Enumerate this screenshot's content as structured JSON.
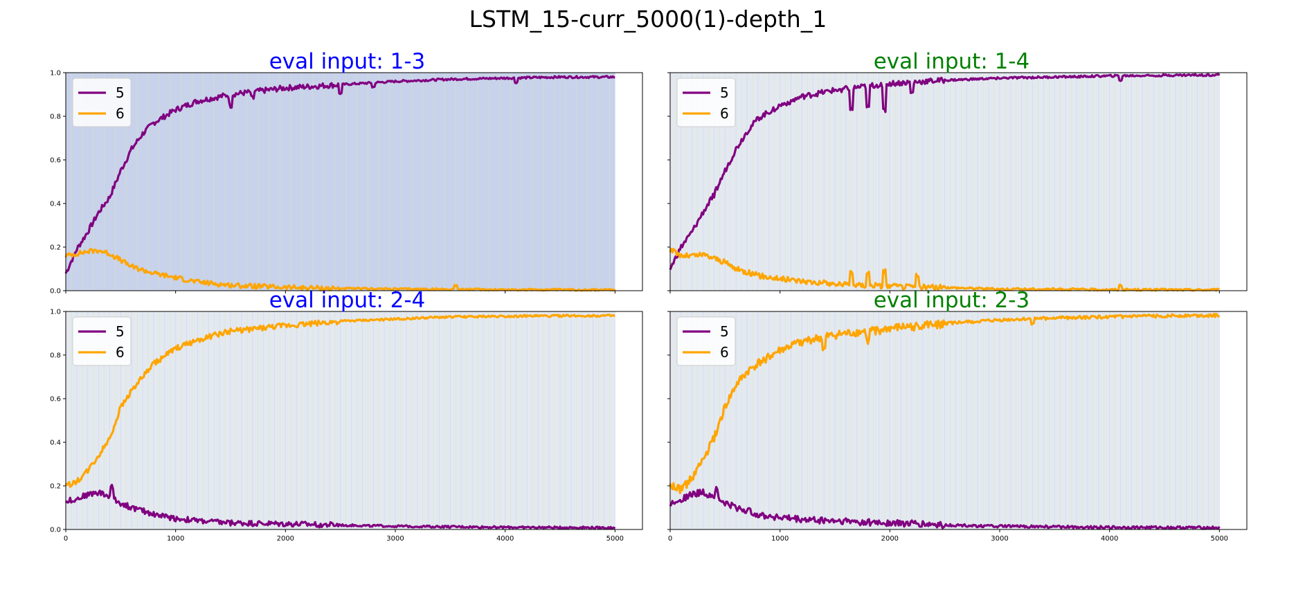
{
  "figure": {
    "title": "LSTM_15-curr_5000(1)-depth_1"
  },
  "chart_data": [
    {
      "type": "line",
      "title": "eval input: 1-3",
      "title_color": "#0000ff",
      "band_color": "#c8d2ea",
      "xlim": [
        0,
        5250
      ],
      "ylim": [
        0,
        1
      ],
      "x_ticks": [
        0,
        1000,
        2000,
        3000,
        4000,
        5000
      ],
      "y_ticks": [
        0.0,
        0.2,
        0.4,
        0.6,
        0.8,
        1.0
      ],
      "y_tick_labels": [
        "0.0",
        "0.2",
        "0.4",
        "0.6",
        "0.8",
        "1.0"
      ],
      "x_tick_labels_visible": false,
      "y_tick_labels_visible": true,
      "legend": {
        "position": "upper-left"
      },
      "series": [
        {
          "name": "5",
          "color": "#800080",
          "x": [
            0,
            100,
            200,
            300,
            400,
            500,
            600,
            700,
            800,
            1000,
            1200,
            1500,
            2000,
            2500,
            3000,
            3500,
            4000,
            4500,
            5000
          ],
          "values": [
            0.08,
            0.19,
            0.27,
            0.36,
            0.43,
            0.55,
            0.65,
            0.72,
            0.77,
            0.83,
            0.87,
            0.9,
            0.93,
            0.945,
            0.96,
            0.97,
            0.975,
            0.98,
            0.98
          ],
          "noise": 0.008,
          "dips": [
            [
              1500,
              0.05
            ],
            [
              1700,
              0.03
            ],
            [
              2500,
              0.04
            ],
            [
              2800,
              0.02
            ],
            [
              4100,
              0.02
            ]
          ]
        },
        {
          "name": "6",
          "color": "#ffa500",
          "x": [
            0,
            100,
            200,
            300,
            400,
            500,
            600,
            800,
            1000,
            1200,
            1500,
            2000,
            2500,
            3000,
            4000,
            5000
          ],
          "values": [
            0.16,
            0.17,
            0.18,
            0.185,
            0.17,
            0.14,
            0.11,
            0.08,
            0.06,
            0.04,
            0.025,
            0.015,
            0.01,
            0.008,
            0.005,
            0.004
          ],
          "noise": 0.007,
          "dips": [
            [
              3550,
              -0.02
            ]
          ]
        }
      ]
    },
    {
      "type": "line",
      "title": "eval input: 1-4",
      "title_color": "#008000",
      "band_color": "#e4e9f0",
      "xlim": [
        0,
        5250
      ],
      "ylim": [
        0,
        1
      ],
      "x_ticks": [
        0,
        1000,
        2000,
        3000,
        4000,
        5000
      ],
      "y_ticks": [
        0.0,
        0.2,
        0.4,
        0.6,
        0.8,
        1.0
      ],
      "y_tick_labels": [
        "0.0",
        "0.2",
        "0.4",
        "0.6",
        "0.8",
        "1.0"
      ],
      "x_tick_labels_visible": false,
      "y_tick_labels_visible": false,
      "legend": {
        "position": "upper-left"
      },
      "series": [
        {
          "name": "5",
          "color": "#800080",
          "x": [
            0,
            100,
            200,
            300,
            400,
            500,
            600,
            700,
            800,
            1000,
            1200,
            1500,
            2000,
            2500,
            3000,
            3500,
            4000,
            4500,
            5000
          ],
          "values": [
            0.1,
            0.2,
            0.27,
            0.36,
            0.44,
            0.55,
            0.65,
            0.73,
            0.79,
            0.85,
            0.89,
            0.92,
            0.95,
            0.965,
            0.975,
            0.98,
            0.985,
            0.988,
            0.99
          ],
          "noise": 0.008,
          "dips": [
            [
              1650,
              0.1
            ],
            [
              1800,
              0.1
            ],
            [
              1950,
              0.12
            ],
            [
              2200,
              0.05
            ],
            [
              4100,
              0.02
            ]
          ]
        },
        {
          "name": "6",
          "color": "#ffa500",
          "x": [
            0,
            100,
            200,
            300,
            400,
            500,
            600,
            800,
            1000,
            1200,
            1500,
            2000,
            2500,
            3000,
            4000,
            5000
          ],
          "values": [
            0.19,
            0.16,
            0.16,
            0.165,
            0.15,
            0.13,
            0.1,
            0.07,
            0.055,
            0.045,
            0.03,
            0.02,
            0.015,
            0.008,
            0.005,
            0.004
          ],
          "noise": 0.008,
          "dips": [
            [
              1650,
              -0.06
            ],
            [
              1800,
              -0.06
            ],
            [
              1950,
              -0.07
            ],
            [
              2250,
              -0.05
            ],
            [
              4100,
              -0.02
            ]
          ]
        }
      ]
    },
    {
      "type": "line",
      "title": "eval input: 2-4",
      "title_color": "#0000ff",
      "band_color": "#e4e9f0",
      "xlim": [
        0,
        5250
      ],
      "ylim": [
        0,
        1
      ],
      "x_ticks": [
        0,
        1000,
        2000,
        3000,
        4000,
        5000
      ],
      "x_tick_labels": [
        "0",
        "1000",
        "2000",
        "3000",
        "4000",
        "5000"
      ],
      "y_ticks": [
        0.0,
        0.2,
        0.4,
        0.6,
        0.8,
        1.0
      ],
      "y_tick_labels": [
        "0.0",
        "0.2",
        "0.4",
        "0.6",
        "0.8",
        "1.0"
      ],
      "x_tick_labels_visible": true,
      "y_tick_labels_visible": true,
      "legend": {
        "position": "upper-left"
      },
      "series": [
        {
          "name": "5",
          "color": "#800080",
          "x": [
            0,
            100,
            200,
            300,
            400,
            500,
            600,
            800,
            1000,
            1200,
            1500,
            2000,
            2500,
            3000,
            4000,
            5000
          ],
          "values": [
            0.13,
            0.14,
            0.16,
            0.17,
            0.15,
            0.12,
            0.1,
            0.07,
            0.05,
            0.04,
            0.03,
            0.025,
            0.02,
            0.015,
            0.01,
            0.008
          ],
          "noise": 0.008,
          "dips": [
            [
              420,
              -0.05
            ]
          ]
        },
        {
          "name": "6",
          "color": "#ffa500",
          "x": [
            0,
            100,
            200,
            300,
            400,
            500,
            600,
            700,
            800,
            1000,
            1200,
            1500,
            2000,
            2500,
            3000,
            3500,
            4000,
            4500,
            5000
          ],
          "values": [
            0.2,
            0.22,
            0.27,
            0.34,
            0.42,
            0.56,
            0.64,
            0.7,
            0.76,
            0.83,
            0.87,
            0.91,
            0.935,
            0.955,
            0.965,
            0.975,
            0.978,
            0.98,
            0.98
          ],
          "noise": 0.008,
          "dips": []
        }
      ]
    },
    {
      "type": "line",
      "title": "eval input: 2-3",
      "title_color": "#008000",
      "band_color": "#e4e9f0",
      "xlim": [
        0,
        5250
      ],
      "ylim": [
        0,
        1
      ],
      "x_ticks": [
        0,
        1000,
        2000,
        3000,
        4000,
        5000
      ],
      "x_tick_labels": [
        "0",
        "1000",
        "2000",
        "3000",
        "4000",
        "5000"
      ],
      "y_ticks": [
        0.0,
        0.2,
        0.4,
        0.6,
        0.8,
        1.0
      ],
      "y_tick_labels": [
        "0.0",
        "0.2",
        "0.4",
        "0.6",
        "0.8",
        "1.0"
      ],
      "x_tick_labels_visible": true,
      "y_tick_labels_visible": false,
      "legend": {
        "position": "upper-left"
      },
      "series": [
        {
          "name": "5",
          "color": "#800080",
          "x": [
            0,
            100,
            200,
            300,
            400,
            500,
            600,
            800,
            1000,
            1200,
            1500,
            2000,
            2500,
            3000,
            4000,
            5000
          ],
          "values": [
            0.12,
            0.14,
            0.16,
            0.17,
            0.15,
            0.12,
            0.1,
            0.07,
            0.055,
            0.045,
            0.04,
            0.03,
            0.02,
            0.015,
            0.01,
            0.008
          ],
          "noise": 0.01,
          "dips": [
            [
              420,
              -0.04
            ]
          ]
        },
        {
          "name": "6",
          "color": "#ffa500",
          "x": [
            0,
            100,
            200,
            300,
            400,
            500,
            600,
            700,
            800,
            1000,
            1200,
            1500,
            2000,
            2500,
            3000,
            3500,
            4000,
            4500,
            5000
          ],
          "values": [
            0.2,
            0.18,
            0.24,
            0.32,
            0.42,
            0.56,
            0.66,
            0.72,
            0.76,
            0.82,
            0.86,
            0.89,
            0.92,
            0.945,
            0.96,
            0.97,
            0.975,
            0.98,
            0.982
          ],
          "noise": 0.012,
          "dips": [
            [
              1400,
              0.06
            ],
            [
              1800,
              0.05
            ],
            [
              3300,
              0.02
            ]
          ]
        }
      ]
    }
  ]
}
